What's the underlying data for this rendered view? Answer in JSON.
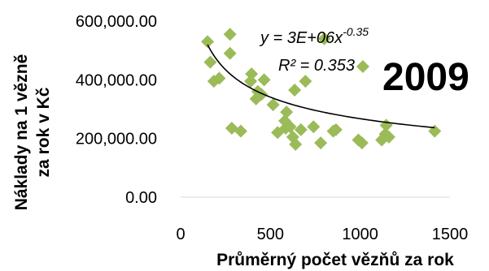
{
  "chart_data": {
    "type": "scatter",
    "title": "2009",
    "xlabel": "Průměrný počet vězňů za rok",
    "ylabel_lines": [
      "Náklady na 1 vězně",
      "za rok v Kč"
    ],
    "xlim": [
      0,
      1500
    ],
    "ylim": [
      0,
      600000
    ],
    "x_ticks": [
      "0",
      "500",
      "1000",
      "1500"
    ],
    "y_ticks": [
      "0.00",
      "200,000.00",
      "400,000.00",
      "600,000.00"
    ],
    "grid": false,
    "marker_color": "#9bbb59",
    "trendline": {
      "type": "power",
      "a": 3000000,
      "b": -0.35,
      "equation_prefix": "y = 3E+06x",
      "equation_exponent": "-0.35",
      "r_squared": "R² = 0.353",
      "color": "#000000"
    },
    "points": [
      [
        150,
        530000
      ],
      [
        165,
        460000
      ],
      [
        185,
        395000
      ],
      [
        215,
        405000
      ],
      [
        275,
        555000
      ],
      [
        275,
        490000
      ],
      [
        285,
        235000
      ],
      [
        335,
        225000
      ],
      [
        390,
        395000
      ],
      [
        395,
        420000
      ],
      [
        420,
        335000
      ],
      [
        430,
        360000
      ],
      [
        450,
        350000
      ],
      [
        465,
        400000
      ],
      [
        515,
        315000
      ],
      [
        540,
        220000
      ],
      [
        580,
        260000
      ],
      [
        585,
        235000
      ],
      [
        590,
        290000
      ],
      [
        610,
        240000
      ],
      [
        625,
        205000
      ],
      [
        635,
        365000
      ],
      [
        640,
        180000
      ],
      [
        670,
        230000
      ],
      [
        695,
        395000
      ],
      [
        740,
        240000
      ],
      [
        780,
        185000
      ],
      [
        800,
        540000
      ],
      [
        850,
        225000
      ],
      [
        865,
        230000
      ],
      [
        990,
        195000
      ],
      [
        1010,
        185000
      ],
      [
        1015,
        445000
      ],
      [
        1120,
        195000
      ],
      [
        1140,
        215000
      ],
      [
        1145,
        245000
      ],
      [
        1160,
        205000
      ],
      [
        1415,
        225000
      ]
    ]
  }
}
